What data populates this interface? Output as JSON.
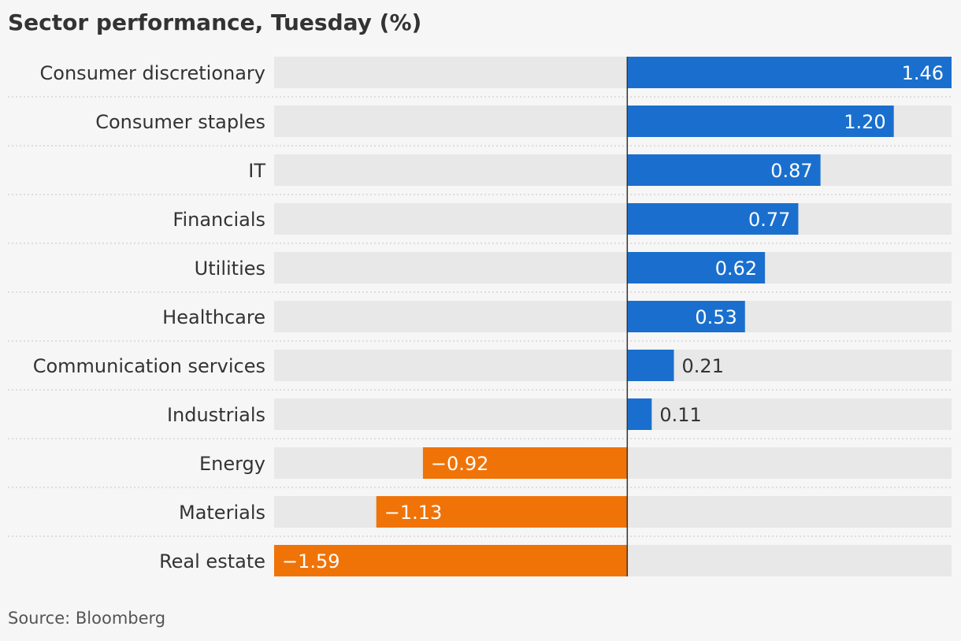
{
  "title": "Sector performance, Tuesday (%)",
  "source": "Source: Bloomberg",
  "colors": {
    "positive": "#1a6fce",
    "negative": "#f07308",
    "track": "#e8e8e8",
    "background": "#f6f6f6"
  },
  "chart_data": {
    "type": "bar",
    "orientation": "horizontal",
    "title": "Sector performance, Tuesday (%)",
    "categories": [
      "Consumer discretionary",
      "Consumer staples",
      "IT",
      "Financials",
      "Utilities",
      "Healthcare",
      "Communication services",
      "Industrials",
      "Energy",
      "Materials",
      "Real estate"
    ],
    "values": [
      1.46,
      1.2,
      0.87,
      0.77,
      0.62,
      0.53,
      0.21,
      0.11,
      -0.92,
      -1.13,
      -1.59
    ],
    "value_labels": [
      "1.46",
      "1.20",
      "0.87",
      "0.77",
      "0.62",
      "0.53",
      "0.21",
      "0.11",
      "−0.92",
      "−1.13",
      "−1.59"
    ],
    "xlim": [
      -1.59,
      1.46
    ],
    "grid": false,
    "legend": "none"
  }
}
